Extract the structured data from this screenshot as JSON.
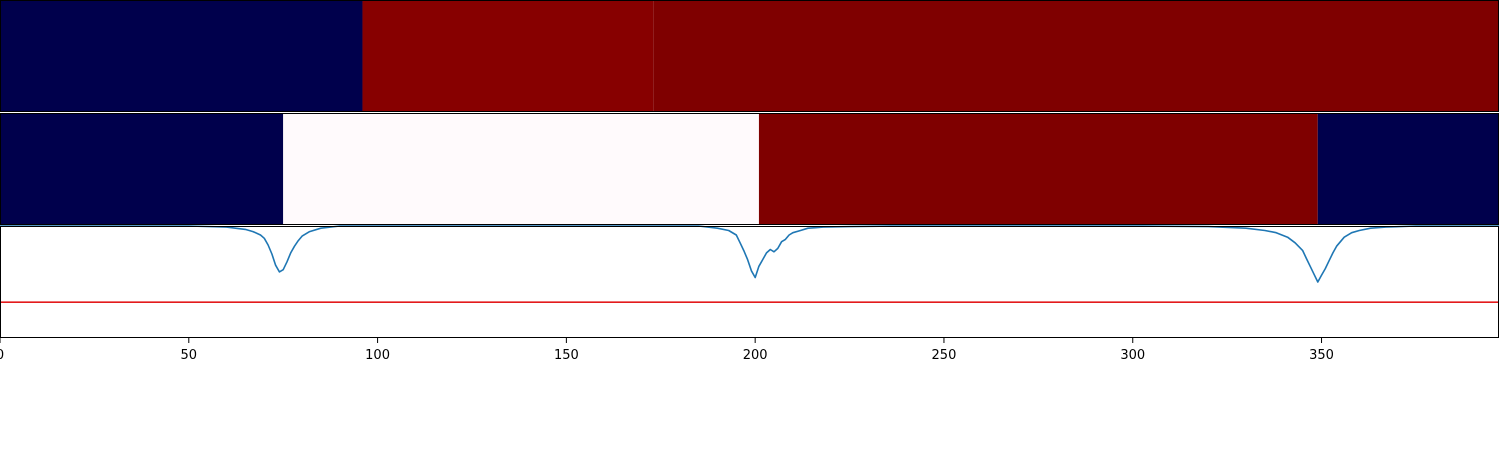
{
  "chart_data": [
    {
      "type": "heatmap",
      "panel": "segment-strip-1",
      "xlim": [
        0,
        397
      ],
      "segments": [
        {
          "start": 0,
          "end": 96,
          "color": "#00004c"
        },
        {
          "start": 96,
          "end": 173,
          "color": "#870000"
        },
        {
          "start": 173,
          "end": 397,
          "color": "#7f0000"
        }
      ]
    },
    {
      "type": "heatmap",
      "panel": "segment-strip-2",
      "xlim": [
        0,
        397
      ],
      "segments": [
        {
          "start": 0,
          "end": 75,
          "color": "#00004c"
        },
        {
          "start": 75,
          "end": 201,
          "color": "#fffafc"
        },
        {
          "start": 201,
          "end": 349,
          "color": "#7f0000"
        },
        {
          "start": 349,
          "end": 397,
          "color": "#00004c"
        }
      ]
    },
    {
      "type": "line",
      "panel": "signal-panel",
      "xlim": [
        0,
        397
      ],
      "ylim": [
        -1.0,
        0.0
      ],
      "threshold": {
        "y": -0.68,
        "color": "#e31a1c"
      },
      "series": [
        {
          "color": "#1f77b4",
          "x": [
            0,
            50,
            60,
            65,
            67,
            69,
            70,
            71,
            72,
            73,
            74,
            75,
            76,
            77,
            78,
            79,
            80,
            82,
            85,
            90,
            140,
            185,
            190,
            193,
            195,
            196,
            197,
            198,
            199,
            200,
            201,
            202,
            203,
            204,
            205,
            206,
            207,
            208,
            209,
            210,
            212,
            214,
            216,
            218,
            220,
            225,
            236,
            300,
            320,
            330,
            335,
            338,
            341,
            343,
            345,
            346,
            347,
            348,
            349,
            350,
            351,
            352,
            353,
            354,
            356,
            358,
            360,
            363,
            367,
            375,
            397
          ],
          "y": [
            0,
            0,
            -0.01,
            -0.03,
            -0.05,
            -0.08,
            -0.11,
            -0.17,
            -0.25,
            -0.35,
            -0.41,
            -0.39,
            -0.32,
            -0.24,
            -0.18,
            -0.13,
            -0.09,
            -0.05,
            -0.02,
            0,
            0,
            0,
            -0.02,
            -0.04,
            -0.08,
            -0.15,
            -0.22,
            -0.3,
            -0.4,
            -0.46,
            -0.36,
            -0.3,
            -0.24,
            -0.21,
            -0.23,
            -0.2,
            -0.14,
            -0.12,
            -0.08,
            -0.06,
            -0.04,
            -0.02,
            -0.015,
            -0.01,
            -0.008,
            -0.005,
            0,
            0,
            -0.005,
            -0.02,
            -0.04,
            -0.06,
            -0.1,
            -0.15,
            -0.22,
            -0.29,
            -0.36,
            -0.43,
            -0.5,
            -0.44,
            -0.38,
            -0.31,
            -0.24,
            -0.18,
            -0.1,
            -0.06,
            -0.04,
            -0.02,
            -0.01,
            0,
            0
          ]
        }
      ],
      "xticks": [
        0,
        50,
        100,
        150,
        200,
        250,
        300,
        350
      ],
      "xtick_labels": [
        "0",
        "50",
        "100",
        "150",
        "200",
        "250",
        "300",
        "350"
      ]
    }
  ]
}
